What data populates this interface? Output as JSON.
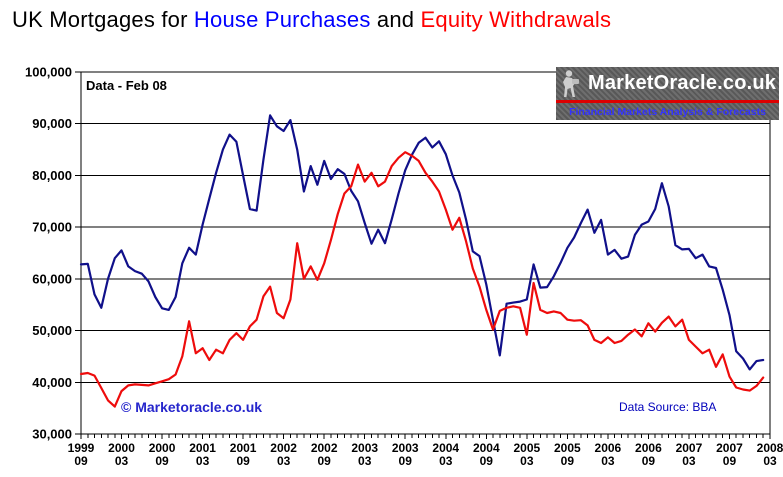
{
  "title": {
    "part1": "UK Mortgages for ",
    "part2": "House Purchases",
    "part3": " and ",
    "part4": "Equity Withdrawals"
  },
  "logo": {
    "name": "MarketOracle.co.uk",
    "tagline": "Financial Markets Analysis & Forecasts",
    "figure_icon": "seated-reader-icon",
    "stripe_color": "#dd0000"
  },
  "annotations": {
    "data_note": "Data - Feb 08",
    "copyright": "© Marketoracle.co.uk",
    "source": "Data Source: BBA"
  },
  "chart_data": {
    "type": "line",
    "title": "UK Mortgages for House Purchases and Equity Withdrawals",
    "xlabel": "",
    "ylabel": "",
    "ylim": [
      30000,
      100000
    ],
    "y_tick_step": 10000,
    "grid": "horizontal-only",
    "legend_position": "none (title acts as legend)",
    "x_start": "1999-09",
    "x_end": "2008-02",
    "months_span": 102,
    "x_tick_labels": [
      [
        "1999",
        "09"
      ],
      [
        "2000",
        "03"
      ],
      [
        "2000",
        "09"
      ],
      [
        "2001",
        "03"
      ],
      [
        "2001",
        "09"
      ],
      [
        "2002",
        "03"
      ],
      [
        "2002",
        "09"
      ],
      [
        "2003",
        "03"
      ],
      [
        "2003",
        "09"
      ],
      [
        "2004",
        "03"
      ],
      [
        "2004",
        "09"
      ],
      [
        "2005",
        "03"
      ],
      [
        "2005",
        "09"
      ],
      [
        "2006",
        "03"
      ],
      [
        "2006",
        "09"
      ],
      [
        "2007",
        "03"
      ],
      [
        "2007",
        "09"
      ],
      [
        "2008",
        "03"
      ]
    ],
    "series": [
      {
        "name": "House Purchases",
        "color": "#10108a",
        "values": [
          62800,
          62900,
          57000,
          54400,
          60000,
          64000,
          65500,
          62400,
          61500,
          61000,
          59500,
          56500,
          54300,
          54000,
          56500,
          63000,
          66000,
          64700,
          70500,
          75500,
          80500,
          85000,
          87900,
          86500,
          80000,
          73500,
          73200,
          83000,
          91600,
          89500,
          88600,
          90700,
          85000,
          76900,
          81800,
          78200,
          82800,
          79300,
          81200,
          80300,
          77000,
          75000,
          70800,
          66800,
          69500,
          66900,
          71500,
          76500,
          81000,
          84000,
          86300,
          87300,
          85400,
          86600,
          84100,
          80000,
          76700,
          71500,
          65300,
          64400,
          58900,
          52000,
          45200,
          55200,
          55400,
          55600,
          56000,
          62800,
          58300,
          58400,
          60500,
          63100,
          66000,
          68000,
          70800,
          73400,
          68900,
          71400,
          64700,
          65600,
          63900,
          64300,
          68500,
          70500,
          71100,
          73500,
          78500,
          74000,
          66500,
          65700,
          65800,
          64000,
          64700,
          62400,
          62100,
          57900,
          53000,
          46000,
          44600,
          42500,
          44100,
          44300
        ]
      },
      {
        "name": "Equity Withdrawals",
        "color": "#ee0c0c",
        "values": [
          41600,
          41800,
          41300,
          38900,
          36500,
          35300,
          38300,
          39400,
          39600,
          39500,
          39400,
          39800,
          40200,
          40600,
          41500,
          45000,
          51800,
          45600,
          46600,
          44300,
          46300,
          45600,
          48200,
          49500,
          48200,
          50800,
          52100,
          56600,
          58500,
          53400,
          52400,
          56000,
          66900,
          60000,
          62400,
          59800,
          63000,
          67500,
          72500,
          76500,
          77900,
          82100,
          78800,
          80500,
          77900,
          78800,
          81800,
          83400,
          84500,
          83800,
          82800,
          80500,
          78800,
          76900,
          73400,
          69500,
          71800,
          67300,
          62000,
          58500,
          54000,
          50200,
          53800,
          54400,
          54700,
          54400,
          49200,
          59200,
          54000,
          53400,
          53700,
          53400,
          52100,
          51900,
          52000,
          51000,
          48200,
          47600,
          48700,
          47600,
          48000,
          49200,
          50200,
          48900,
          51400,
          49800,
          51500,
          52700,
          50800,
          52100,
          48200,
          46900,
          45600,
          46300,
          43000,
          45400,
          41100,
          39000,
          38600,
          38400,
          39300,
          40900
        ]
      }
    ]
  }
}
